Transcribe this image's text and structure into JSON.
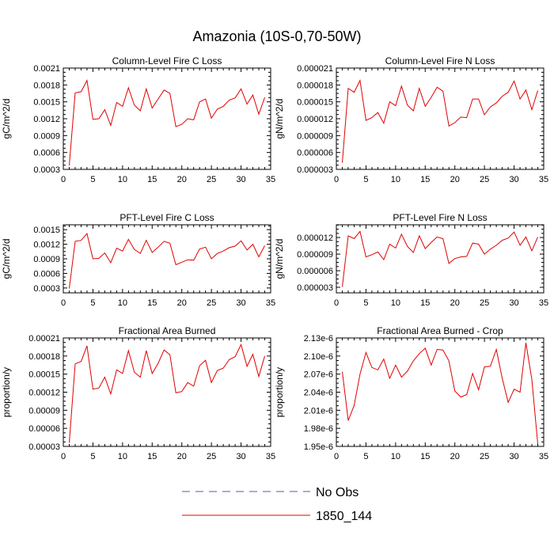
{
  "figure_title": "Amazonia (10S-0,70-50W)",
  "legend": [
    {
      "label": "No Obs",
      "style": "dashed",
      "color": "#5a5aa0"
    },
    {
      "label": "1850_144",
      "style": "solid",
      "color": "#e00000"
    }
  ],
  "chart_data": [
    {
      "type": "line",
      "title": "Column-Level Fire C Loss",
      "ylabel": "gC/m^2/d",
      "xlabel": "",
      "xlim": [
        0,
        35
      ],
      "ylim": [
        0.0003,
        0.0021
      ],
      "xticks": [
        0,
        5,
        10,
        15,
        20,
        25,
        30,
        35
      ],
      "yticks": [
        0.0003,
        0.0006,
        0.0009,
        0.0012,
        0.0015,
        0.0018,
        0.0021
      ],
      "ytick_labels": [
        "0.0003",
        "0.0006",
        "0.0009",
        "0.0012",
        "0.0015",
        "0.0018",
        "0.0021"
      ],
      "series": [
        {
          "name": "1850_144",
          "x": [
            1,
            2,
            3,
            4,
            5,
            6,
            7,
            8,
            9,
            10,
            11,
            12,
            13,
            14,
            15,
            16,
            17,
            18,
            19,
            20,
            21,
            22,
            23,
            24,
            25,
            26,
            27,
            28,
            29,
            30,
            31,
            32,
            33,
            34
          ],
          "values": [
            0.00037,
            0.00166,
            0.00168,
            0.00188,
            0.00119,
            0.0012,
            0.00136,
            0.00108,
            0.00149,
            0.00142,
            0.00175,
            0.00144,
            0.00134,
            0.00173,
            0.00139,
            0.00155,
            0.00171,
            0.00165,
            0.00106,
            0.0011,
            0.0012,
            0.00118,
            0.0015,
            0.00155,
            0.00121,
            0.00137,
            0.00142,
            0.00153,
            0.00157,
            0.00173,
            0.00146,
            0.00162,
            0.00128,
            0.00158
          ]
        }
      ]
    },
    {
      "type": "line",
      "title": "Column-Level Fire N Loss",
      "ylabel": "gN/m^2/d",
      "xlabel": "",
      "xlim": [
        0,
        35
      ],
      "ylim": [
        3e-06,
        2.1e-05
      ],
      "xticks": [
        0,
        5,
        10,
        15,
        20,
        25,
        30,
        35
      ],
      "yticks": [
        3e-06,
        6e-06,
        9e-06,
        1.2e-05,
        1.5e-05,
        1.8e-05,
        2.1e-05
      ],
      "ytick_labels": [
        "0.000003",
        "0.000006",
        "0.000009",
        "0.000012",
        "0.000015",
        "0.000018",
        "0.000021"
      ],
      "series": [
        {
          "name": "1850_144",
          "x": [
            1,
            2,
            3,
            4,
            5,
            6,
            7,
            8,
            9,
            10,
            11,
            12,
            13,
            14,
            15,
            16,
            17,
            18,
            19,
            20,
            21,
            22,
            23,
            24,
            25,
            26,
            27,
            28,
            29,
            30,
            31,
            32,
            33,
            34
          ],
          "values": [
            4.2e-06,
            1.74e-05,
            1.67e-05,
            1.88e-05,
            1.17e-05,
            1.22e-05,
            1.31e-05,
            1.12e-05,
            1.5e-05,
            1.43e-05,
            1.78e-05,
            1.44e-05,
            1.34e-05,
            1.74e-05,
            1.42e-05,
            1.58e-05,
            1.76e-05,
            1.69e-05,
            1.07e-05,
            1.13e-05,
            1.23e-05,
            1.22e-05,
            1.55e-05,
            1.55e-05,
            1.27e-05,
            1.41e-05,
            1.48e-05,
            1.6e-05,
            1.67e-05,
            1.87e-05,
            1.55e-05,
            1.71e-05,
            1.36e-05,
            1.7e-05
          ]
        }
      ]
    },
    {
      "type": "line",
      "title": "PFT-Level Fire C Loss",
      "ylabel": "gC/m^2/d",
      "xlabel": "",
      "xlim": [
        0,
        35
      ],
      "ylim": [
        0.0002,
        0.0016
      ],
      "xticks": [
        0,
        5,
        10,
        15,
        20,
        25,
        30,
        35
      ],
      "yticks": [
        0.0003,
        0.0006,
        0.0009,
        0.0012,
        0.0015
      ],
      "ytick_labels": [
        "0.0003",
        "0.0006",
        "0.0009",
        "0.0012",
        "0.0015"
      ],
      "series": [
        {
          "name": "1850_144",
          "x": [
            1,
            2,
            3,
            4,
            5,
            6,
            7,
            8,
            9,
            10,
            11,
            12,
            13,
            14,
            15,
            16,
            17,
            18,
            19,
            20,
            21,
            22,
            23,
            24,
            25,
            26,
            27,
            28,
            29,
            30,
            31,
            32,
            33,
            34
          ],
          "values": [
            0.00029,
            0.00126,
            0.00128,
            0.00142,
            0.0009,
            0.00091,
            0.00102,
            0.00082,
            0.00112,
            0.00106,
            0.0013,
            0.00109,
            0.00101,
            0.00128,
            0.00103,
            0.00114,
            0.00126,
            0.00122,
            0.00078,
            0.00083,
            0.00088,
            0.00087,
            0.0011,
            0.00114,
            0.0009,
            0.00101,
            0.00106,
            0.00113,
            0.00116,
            0.00127,
            0.00108,
            0.0012,
            0.00094,
            0.00117
          ]
        }
      ]
    },
    {
      "type": "line",
      "title": "PFT-Level Fire N Loss",
      "ylabel": "gN/m^2/d",
      "xlabel": "",
      "xlim": [
        0,
        35
      ],
      "ylim": [
        2e-06,
        1.43e-05
      ],
      "xticks": [
        0,
        5,
        10,
        15,
        20,
        25,
        30,
        35
      ],
      "yticks": [
        3e-06,
        6e-06,
        9e-06,
        1.2e-05
      ],
      "ytick_labels": [
        "0.000003",
        "0.000006",
        "0.000009",
        "0.000012"
      ],
      "series": [
        {
          "name": "1850_144",
          "x": [
            1,
            2,
            3,
            4,
            5,
            6,
            7,
            8,
            9,
            10,
            11,
            12,
            13,
            14,
            15,
            16,
            17,
            18,
            19,
            20,
            21,
            22,
            23,
            24,
            25,
            26,
            27,
            28,
            29,
            30,
            31,
            32,
            33,
            34
          ],
          "values": [
            3.1e-06,
            1.23e-05,
            1.18e-05,
            1.31e-05,
            8.5e-06,
            8.9e-06,
            9.4e-06,
            8e-06,
            1.08e-05,
            1.01e-05,
            1.26e-05,
            1.04e-05,
            9.3e-06,
            1.23e-05,
            1e-05,
            1.11e-05,
            1.21e-05,
            1.18e-05,
            7.3e-06,
            8.2e-06,
            8.5e-06,
            8.6e-06,
            1.1e-05,
            1.08e-05,
            9e-06,
            9.9e-06,
            1.06e-05,
            1.15e-05,
            1.19e-05,
            1.3e-05,
            1.06e-05,
            1.21e-05,
            9.6e-06,
            1.21e-05
          ]
        }
      ]
    },
    {
      "type": "line",
      "title": "Fractional Area Burned",
      "ylabel": "proportion/y",
      "xlabel": "",
      "xlim": [
        0,
        35
      ],
      "ylim": [
        3e-05,
        0.00021
      ],
      "xticks": [
        0,
        5,
        10,
        15,
        20,
        25,
        30,
        35
      ],
      "yticks": [
        3e-05,
        6e-05,
        9e-05,
        0.00012,
        0.00015,
        0.00018,
        0.00021
      ],
      "ytick_labels": [
        "0.00003",
        "0.00006",
        "0.00009",
        "0.00012",
        "0.00015",
        "0.00018",
        "0.00021"
      ],
      "series": [
        {
          "name": "1850_144",
          "x": [
            1,
            2,
            3,
            4,
            5,
            6,
            7,
            8,
            9,
            10,
            11,
            12,
            13,
            14,
            15,
            16,
            17,
            18,
            19,
            20,
            21,
            22,
            23,
            24,
            25,
            26,
            27,
            28,
            29,
            30,
            31,
            32,
            33,
            34
          ],
          "values": [
            3.6e-05,
            0.000167,
            0.000171,
            0.000197,
            0.000125,
            0.000127,
            0.000145,
            0.000117,
            0.000157,
            0.000151,
            0.000189,
            0.000153,
            0.000145,
            0.000189,
            0.000151,
            0.000168,
            0.00019,
            0.000182,
            0.000119,
            0.000121,
            0.000136,
            0.00013,
            0.000164,
            0.000173,
            0.000136,
            0.000156,
            0.00016,
            0.000174,
            0.000179,
            0.000199,
            0.000163,
            0.000183,
            0.000146,
            0.00018
          ]
        }
      ]
    },
    {
      "type": "line",
      "title": "Fractional Area Burned - Crop",
      "ylabel": "proportion/y",
      "xlabel": "",
      "xlim": [
        0,
        35
      ],
      "ylim": [
        1.95e-06,
        2.13e-06
      ],
      "xticks": [
        0,
        5,
        10,
        15,
        20,
        25,
        30,
        35
      ],
      "yticks": [
        1.95e-06,
        1.98e-06,
        2.01e-06,
        2.04e-06,
        2.07e-06,
        2.1e-06,
        2.13e-06
      ],
      "ytick_labels": [
        "1.95e-6",
        "1.98e-6",
        "2.01e-6",
        "2.04e-6",
        "2.07e-6",
        "2.10e-6",
        "2.13e-6"
      ],
      "series": [
        {
          "name": "1850_144",
          "x": [
            1,
            2,
            3,
            4,
            5,
            6,
            7,
            8,
            9,
            10,
            11,
            12,
            13,
            14,
            15,
            16,
            17,
            18,
            19,
            20,
            21,
            22,
            23,
            24,
            25,
            26,
            27,
            28,
            29,
            30,
            31,
            32,
            33,
            34
          ],
          "values": [
            2.074e-06,
            1.993e-06,
            2.018e-06,
            2.07e-06,
            2.106e-06,
            2.081e-06,
            2.077e-06,
            2.095e-06,
            2.063e-06,
            2.085e-06,
            2.065e-06,
            2.075e-06,
            2.092e-06,
            2.104e-06,
            2.113e-06,
            2.085e-06,
            2.111e-06,
            2.11e-06,
            2.092e-06,
            2.042e-06,
            2.032e-06,
            2.036e-06,
            2.071e-06,
            2.044e-06,
            2.082e-06,
            2.083e-06,
            2.111e-06,
            2.063e-06,
            2.023e-06,
            2.045e-06,
            2.04e-06,
            2.122e-06,
            2.061e-06,
            1.954e-06
          ]
        }
      ]
    }
  ]
}
